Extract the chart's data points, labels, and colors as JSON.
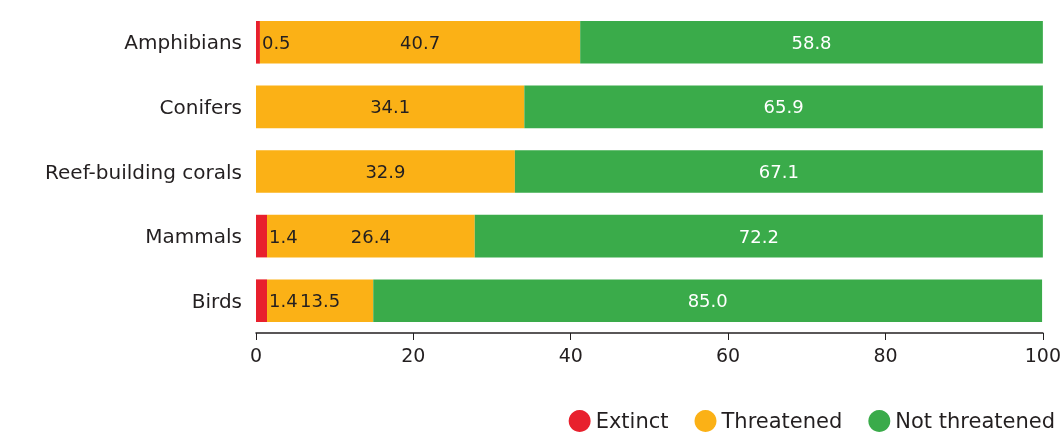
{
  "chart_data": {
    "type": "bar",
    "orientation": "horizontal",
    "stacked": true,
    "categories": [
      "Amphibians",
      "Conifers",
      "Reef-building corals",
      "Mammals",
      "Birds"
    ],
    "series": [
      {
        "name": "Extinct",
        "color": "#e8202d",
        "values": [
          0.5,
          0,
          0,
          1.4,
          1.4
        ],
        "value_labels": [
          "0.5",
          null,
          null,
          "1.4",
          "1.4"
        ]
      },
      {
        "name": "Threatened",
        "color": "#fbb116",
        "values": [
          40.7,
          34.1,
          32.9,
          26.4,
          13.5
        ],
        "value_labels": [
          "40.7",
          "34.1",
          "32.9",
          "26.4",
          "13.5"
        ]
      },
      {
        "name": "Not threatened",
        "color": "#3aab4a",
        "values": [
          58.8,
          65.9,
          67.1,
          72.2,
          85.0
        ],
        "value_labels": [
          "58.8",
          "65.9",
          "67.1",
          "72.2",
          "85.0"
        ]
      }
    ],
    "xlim": [
      0,
      100
    ],
    "xticks": [
      0,
      20,
      40,
      60,
      80,
      100
    ],
    "grid": false,
    "legend": "bottom right"
  }
}
